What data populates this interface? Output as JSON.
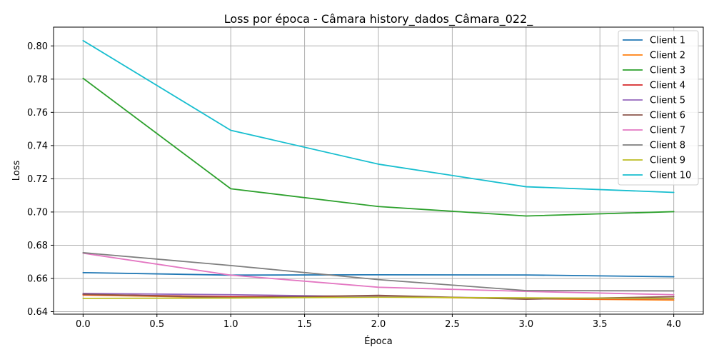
{
  "chart_data": {
    "type": "line",
    "title": "Loss por época - Câmara history_dados_Câmara_022_",
    "xlabel": "Época",
    "ylabel": "Loss",
    "x": [
      0,
      1,
      2,
      3,
      4
    ],
    "xlim": [
      -0.2,
      4.2
    ],
    "ylim": [
      0.6385,
      0.8113
    ],
    "xticks": [
      0.0,
      0.5,
      1.0,
      1.5,
      2.0,
      2.5,
      3.0,
      3.5,
      4.0
    ],
    "xtick_labels": [
      "0.0",
      "0.5",
      "1.0",
      "1.5",
      "2.0",
      "2.5",
      "3.0",
      "3.5",
      "4.0"
    ],
    "yticks": [
      0.64,
      0.66,
      0.68,
      0.7,
      0.72,
      0.74,
      0.76,
      0.78,
      0.8
    ],
    "ytick_labels": [
      "0.64",
      "0.66",
      "0.68",
      "0.70",
      "0.72",
      "0.74",
      "0.76",
      "0.78",
      "0.80"
    ],
    "grid": true,
    "legend_position": "top-right",
    "series": [
      {
        "name": "Client 1",
        "color": "#1f77b4",
        "values": [
          0.6635,
          0.662,
          0.6622,
          0.6621,
          0.661
        ]
      },
      {
        "name": "Client 2",
        "color": "#ff7f0e",
        "values": [
          0.65,
          0.6485,
          0.649,
          0.6478,
          0.647
        ]
      },
      {
        "name": "Client 3",
        "color": "#2ca02c",
        "values": [
          0.7805,
          0.714,
          0.7033,
          0.6976,
          0.7002
        ]
      },
      {
        "name": "Client 4",
        "color": "#d62728",
        "values": [
          0.6503,
          0.649,
          0.6493,
          0.6478,
          0.6478
        ]
      },
      {
        "name": "Client 5",
        "color": "#9467bd",
        "values": [
          0.651,
          0.6502,
          0.649,
          0.6482,
          0.6478
        ]
      },
      {
        "name": "Client 6",
        "color": "#8c564b",
        "values": [
          0.6505,
          0.6485,
          0.6498,
          0.6475,
          0.649
        ]
      },
      {
        "name": "Client 7",
        "color": "#e377c2",
        "values": [
          0.6752,
          0.662,
          0.6547,
          0.6522,
          0.6502
        ]
      },
      {
        "name": "Client 8",
        "color": "#7f7f7f",
        "values": [
          0.6755,
          0.6678,
          0.6593,
          0.6527,
          0.6525
        ]
      },
      {
        "name": "Client 9",
        "color": "#bcbd22",
        "values": [
          0.648,
          0.6482,
          0.6487,
          0.6483,
          0.648
        ]
      },
      {
        "name": "Client 10",
        "color": "#17becf",
        "values": [
          0.8032,
          0.7492,
          0.7288,
          0.7152,
          0.7118
        ]
      }
    ]
  }
}
